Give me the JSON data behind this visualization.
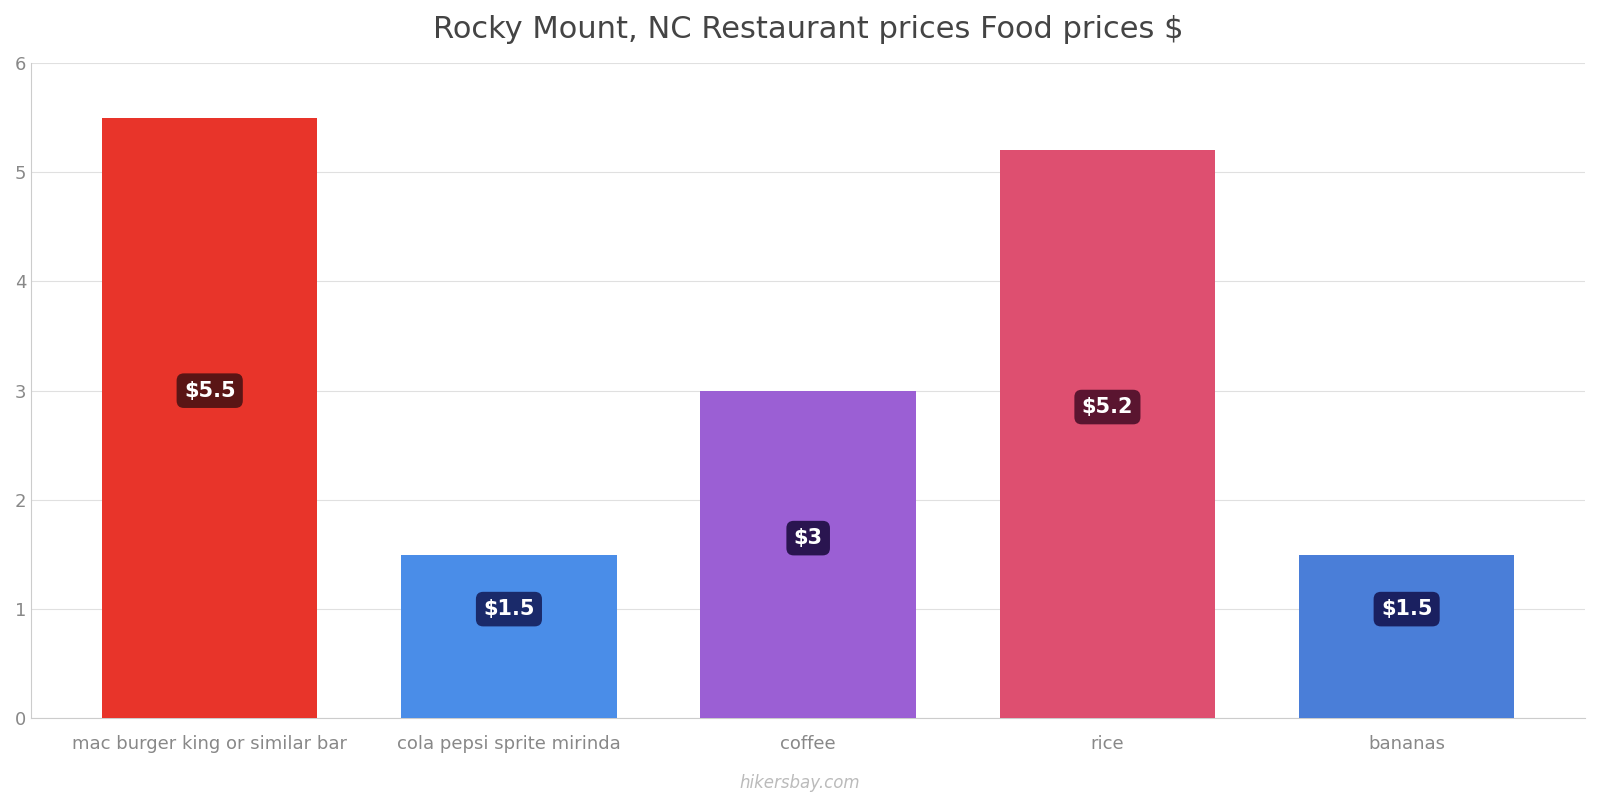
{
  "title": "Rocky Mount, NC Restaurant prices Food prices $",
  "categories": [
    "mac burger king or similar bar",
    "cola pepsi sprite mirinda",
    "coffee",
    "rice",
    "bananas"
  ],
  "values": [
    5.5,
    1.5,
    3.0,
    5.2,
    1.5
  ],
  "labels": [
    "$5.5",
    "$1.5",
    "$3",
    "$5.2",
    "$1.5"
  ],
  "bar_colors": [
    "#e8342a",
    "#4a8de8",
    "#9b5fd4",
    "#de4f70",
    "#4a7ed8"
  ],
  "label_bg_colors": [
    "#5a1515",
    "#1a2a6a",
    "#2a1550",
    "#5a1530",
    "#1a2060"
  ],
  "ylim": [
    0,
    6
  ],
  "yticks": [
    0,
    1,
    2,
    3,
    4,
    5,
    6
  ],
  "background_color": "#ffffff",
  "title_fontsize": 22,
  "tick_fontsize": 13,
  "watermark": "hikersbay.com",
  "label_fontsize": 15,
  "bar_width": 0.72,
  "label_y_positions": [
    3.0,
    1.0,
    1.65,
    2.85,
    1.0
  ]
}
